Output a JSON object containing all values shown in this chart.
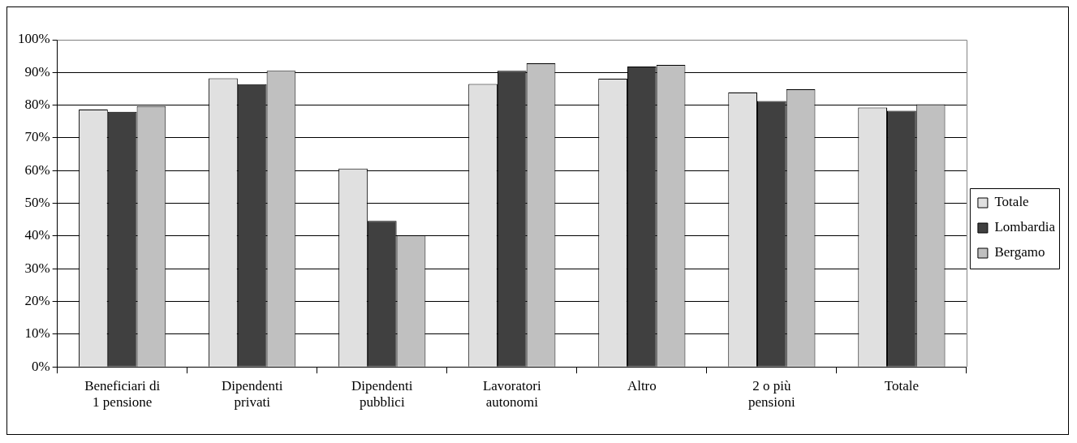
{
  "chart_data": {
    "type": "bar",
    "categories": [
      "Beneficiari di 1 pensione",
      "Dipendenti privati",
      "Dipendenti pubblici",
      "Lavoratori autonomi",
      "Altro",
      "2 o più pensioni",
      "Totale"
    ],
    "series": [
      {
        "name": "Totale",
        "color": "#e0e0e0",
        "values": [
          78.7,
          88.2,
          60.6,
          86.5,
          88.1,
          83.9,
          79.3
        ]
      },
      {
        "name": "Lombardia",
        "color": "#404040",
        "values": [
          78.0,
          86.4,
          44.6,
          90.5,
          91.8,
          81.3,
          78.3
        ]
      },
      {
        "name": "Bergamo",
        "color": "#c0c0c0",
        "values": [
          79.7,
          90.5,
          40.2,
          92.8,
          92.3,
          84.9,
          80.3
        ]
      }
    ],
    "ylim": [
      0,
      100
    ],
    "yticks": [
      {
        "value": 0,
        "label": "0%"
      },
      {
        "value": 10,
        "label": "10%"
      },
      {
        "value": 20,
        "label": "20%"
      },
      {
        "value": 30,
        "label": "30%"
      },
      {
        "value": 40,
        "label": "40%"
      },
      {
        "value": 50,
        "label": "50%"
      },
      {
        "value": 60,
        "label": "60%"
      },
      {
        "value": 70,
        "label": "70%"
      },
      {
        "value": 80,
        "label": "80%"
      },
      {
        "value": 90,
        "label": "90%"
      },
      {
        "value": 100,
        "label": "100%"
      }
    ],
    "grid": "y",
    "legend": "right"
  }
}
